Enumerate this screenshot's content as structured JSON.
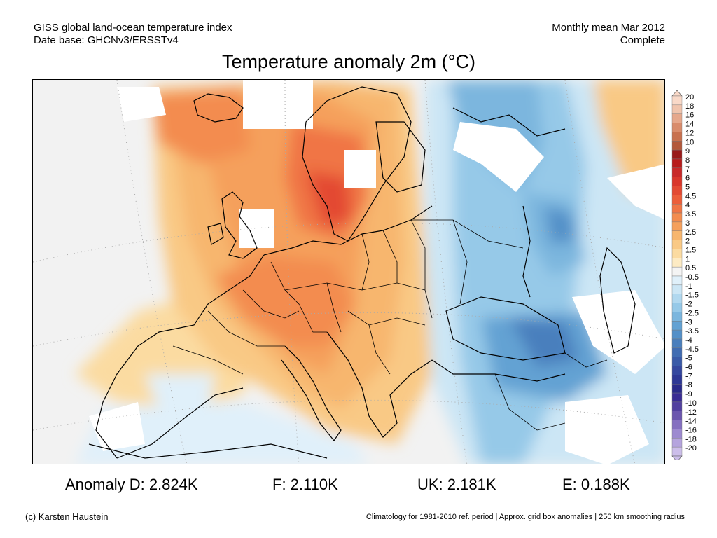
{
  "header": {
    "line1_left": "GISS global land-ocean temperature index",
    "line2_left": "Date base: GHCNv3/ERSSTv4",
    "line1_right": "Monthly mean Mar 2012",
    "line2_right": "Complete"
  },
  "title": "Temperature anomaly 2m (°C)",
  "stats": {
    "d": "Anomaly D: 2.824K",
    "f": "F: 2.110K",
    "uk": "UK: 2.181K",
    "e": "E: 0.188K"
  },
  "footer": {
    "left": "(c) Karsten Haustein",
    "right": "Climatology for 1981-2010 ref. period | Approx. grid box anomalies | 250 km smoothing radius"
  },
  "colorbar": {
    "labels": [
      "20",
      "18",
      "16",
      "14",
      "12",
      "10",
      "9",
      "8",
      "7",
      "6",
      "5",
      "4.5",
      "4",
      "3.5",
      "3",
      "2.5",
      "2",
      "1.5",
      "1",
      "0.5",
      "-0.5",
      "-1",
      "-1.5",
      "-2",
      "-2.5",
      "-3",
      "-3.5",
      "-4",
      "-4.5",
      "-5",
      "-6",
      "-7",
      "-8",
      "-9",
      "-10",
      "-12",
      "-14",
      "-16",
      "-18",
      "-20"
    ],
    "colors": [
      "#f9d9c8",
      "#f0c4ad",
      "#e6a88c",
      "#d98c6c",
      "#c8714f",
      "#b3583a",
      "#991a1a",
      "#b81c1c",
      "#c92a2a",
      "#d9372c",
      "#e34a33",
      "#ec5e3a",
      "#f07545",
      "#f38c4f",
      "#f5a05c",
      "#f7b66e",
      "#f9c985",
      "#fbdba1",
      "#fdebc4",
      "#f4f4f4",
      "#e0f0fa",
      "#cce6f5",
      "#b1d8ef",
      "#96c9e8",
      "#7bb6de",
      "#63a2d3",
      "#5390c8",
      "#4a7fbd",
      "#416db2",
      "#3a5ba8",
      "#35489f",
      "#2e3895",
      "#2a2a8a",
      "#3a2c94",
      "#52409f",
      "#6b56ae",
      "#8570c0",
      "#9d8ad0",
      "#b5a4de",
      "#ccbeea"
    ]
  }
}
